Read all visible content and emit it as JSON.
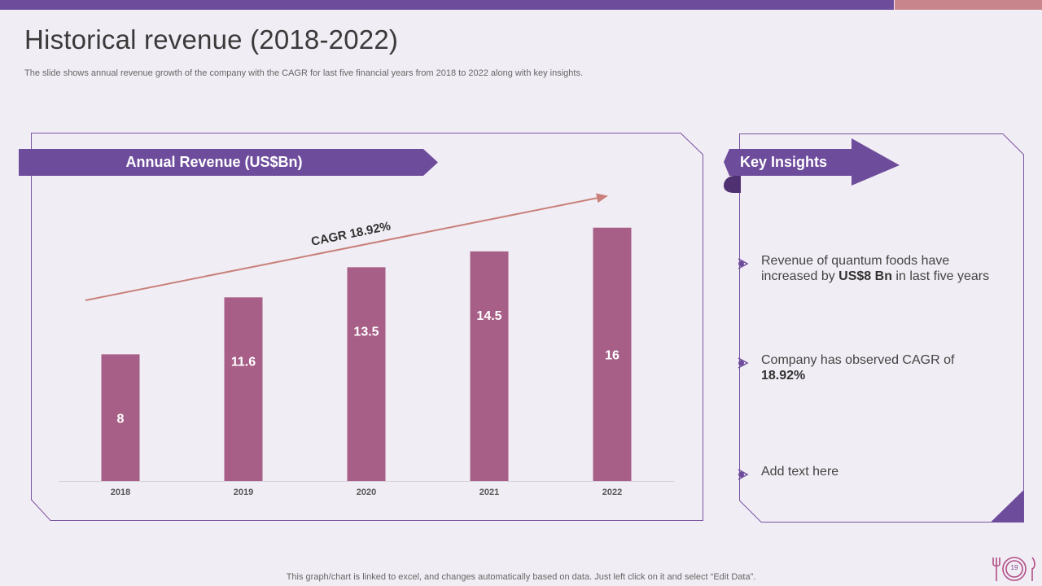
{
  "colors": {
    "accent_purple": "#6e4c9c",
    "accent_pink": "#c9858c",
    "bar": "#a85f87",
    "cagr_arrow": "#c9807c",
    "background": "#f1edf4"
  },
  "header": {
    "title": "Historical revenue (2018-2022)",
    "subtitle": "The slide shows annual revenue growth of the company with the CAGR for last five financial years from 2018 to 2022 along with key insights."
  },
  "chart_panel": {
    "banner_label": "Annual Revenue (US$Bn)"
  },
  "chart_data": {
    "type": "bar",
    "title": "Annual Revenue (US$Bn)",
    "categories": [
      "2018",
      "2019",
      "2020",
      "2021",
      "2022"
    ],
    "values": [
      8,
      11.6,
      13.5,
      14.5,
      16
    ],
    "value_labels": [
      "8",
      "11.6",
      "13.5",
      "14.5",
      "16"
    ],
    "ylim": [
      0,
      16.5
    ],
    "grid": false,
    "xlabel": "",
    "ylabel": "",
    "annotation": "CAGR 18.92%"
  },
  "insights_panel": {
    "banner_label": "Key Insights",
    "items": [
      {
        "pre": "Revenue of quantum foods have increased by ",
        "bold": "US$8 Bn",
        "post": " in last five years"
      },
      {
        "pre": "Company has observed CAGR of ",
        "bold": "18.92%",
        "post": ""
      },
      {
        "pre": "Add text here",
        "bold": "",
        "post": ""
      }
    ]
  },
  "footer": {
    "note": "This graph/chart is linked to excel,  and changes automatically based on data. Just left click on it and select “Edit Data”.",
    "page_number": "19",
    "logo_icon": "cutlery-plate-icon"
  }
}
